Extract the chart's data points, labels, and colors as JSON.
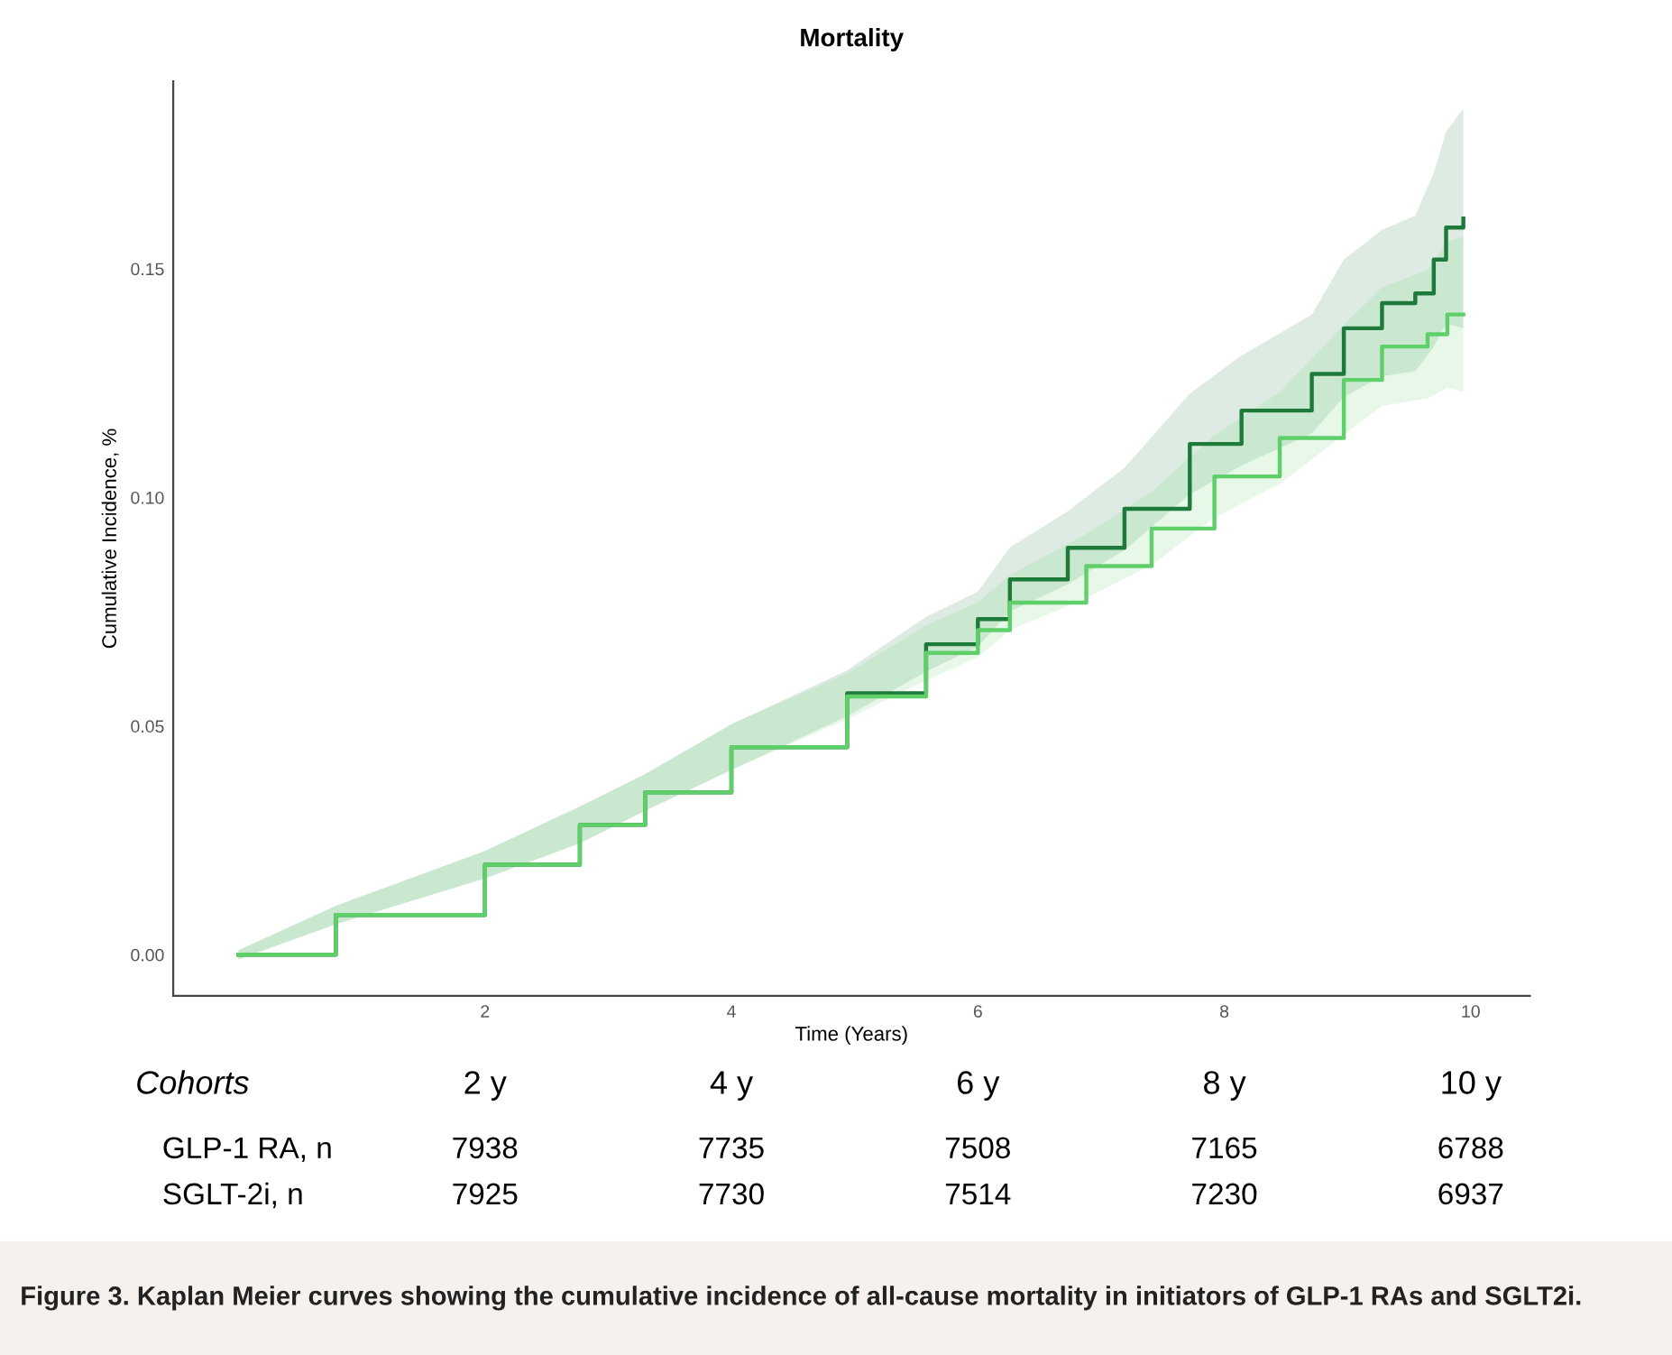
{
  "chart_data": {
    "type": "step",
    "title": "Mortality",
    "xlabel": "Time (Years)",
    "ylabel": "Cumulative Incidence, %",
    "xlim": [
      -0.53,
      10.48
    ],
    "ylim": [
      -0.009,
      0.191
    ],
    "xticks": [
      2,
      4,
      6,
      8,
      10
    ],
    "yticks": [
      {
        "value": 0,
        "label": "0.00"
      },
      {
        "value": 0.05,
        "label": "0.05"
      },
      {
        "value": 0.1,
        "label": "0.10"
      },
      {
        "value": 0.15,
        "label": "0.15"
      }
    ],
    "grid": false,
    "legend": false,
    "series": [
      {
        "color": "#1e7a3a",
        "x": [
          0,
          0.79,
          2.0,
          2.77,
          3.3,
          4.0,
          4.94,
          5.58,
          6.0,
          6.26,
          6.73,
          7.19,
          7.72,
          8.14,
          8.71,
          8.97,
          9.28,
          9.55,
          9.7,
          9.8,
          9.94
        ],
        "values": [
          0,
          0.0087,
          0.0197,
          0.0284,
          0.0355,
          0.0454,
          0.0572,
          0.0679,
          0.0734,
          0.0821,
          0.089,
          0.0975,
          0.1117,
          0.119,
          0.127,
          0.137,
          0.1425,
          0.1446,
          0.152,
          0.159,
          0.161
        ],
        "lower": [
          -0.001,
          0.0067,
          0.0167,
          0.0244,
          0.0315,
          0.0404,
          0.0522,
          0.0619,
          0.0674,
          0.0751,
          0.081,
          0.0885,
          0.1007,
          0.107,
          0.114,
          0.122,
          0.1265,
          0.1276,
          0.133,
          0.138,
          0.137
        ],
        "upper": [
          0.001,
          0.0107,
          0.0227,
          0.0324,
          0.0395,
          0.0504,
          0.0622,
          0.0739,
          0.0794,
          0.0891,
          0.097,
          0.1065,
          0.1227,
          0.131,
          0.14,
          0.152,
          0.1585,
          0.1616,
          0.171,
          0.18,
          0.185
        ]
      },
      {
        "color": "#5fcf6a",
        "x": [
          0,
          0.79,
          2.0,
          2.77,
          3.3,
          4.0,
          4.94,
          5.58,
          6.0,
          6.26,
          6.88,
          7.41,
          7.92,
          8.45,
          8.97,
          9.28,
          9.65,
          9.81,
          9.94
        ],
        "values": [
          0,
          0.0087,
          0.0197,
          0.0284,
          0.0355,
          0.0454,
          0.0565,
          0.066,
          0.071,
          0.077,
          0.085,
          0.0932,
          0.1046,
          0.113,
          0.1257,
          0.133,
          0.1357,
          0.14,
          0.14
        ],
        "lower": [
          -0.001,
          0.0067,
          0.0167,
          0.0244,
          0.0315,
          0.0404,
          0.0515,
          0.06,
          0.065,
          0.071,
          0.078,
          0.0852,
          0.0956,
          0.103,
          0.1137,
          0.12,
          0.1217,
          0.124,
          0.123
        ],
        "upper": [
          0.001,
          0.0107,
          0.0227,
          0.0324,
          0.0395,
          0.0504,
          0.0615,
          0.072,
          0.077,
          0.083,
          0.092,
          0.1012,
          0.1136,
          0.123,
          0.1377,
          0.146,
          0.1497,
          0.156,
          0.157
        ]
      }
    ],
    "annotations": [
      "Cohorts",
      "2 y",
      "4 y",
      "6 y",
      "8 y",
      "10 y",
      "GLP-1 RA, n",
      "7938",
      "7735",
      "7508",
      "7165",
      "6788",
      "SGLT-2i, n",
      "7925",
      "7730",
      "7514",
      "7230",
      "6937",
      "Figure 3. Kaplan Meier curves showing the cumulative incidence of all-cause mortality in initiators of GLP-1 RAs and SGLT2i."
    ]
  }
}
